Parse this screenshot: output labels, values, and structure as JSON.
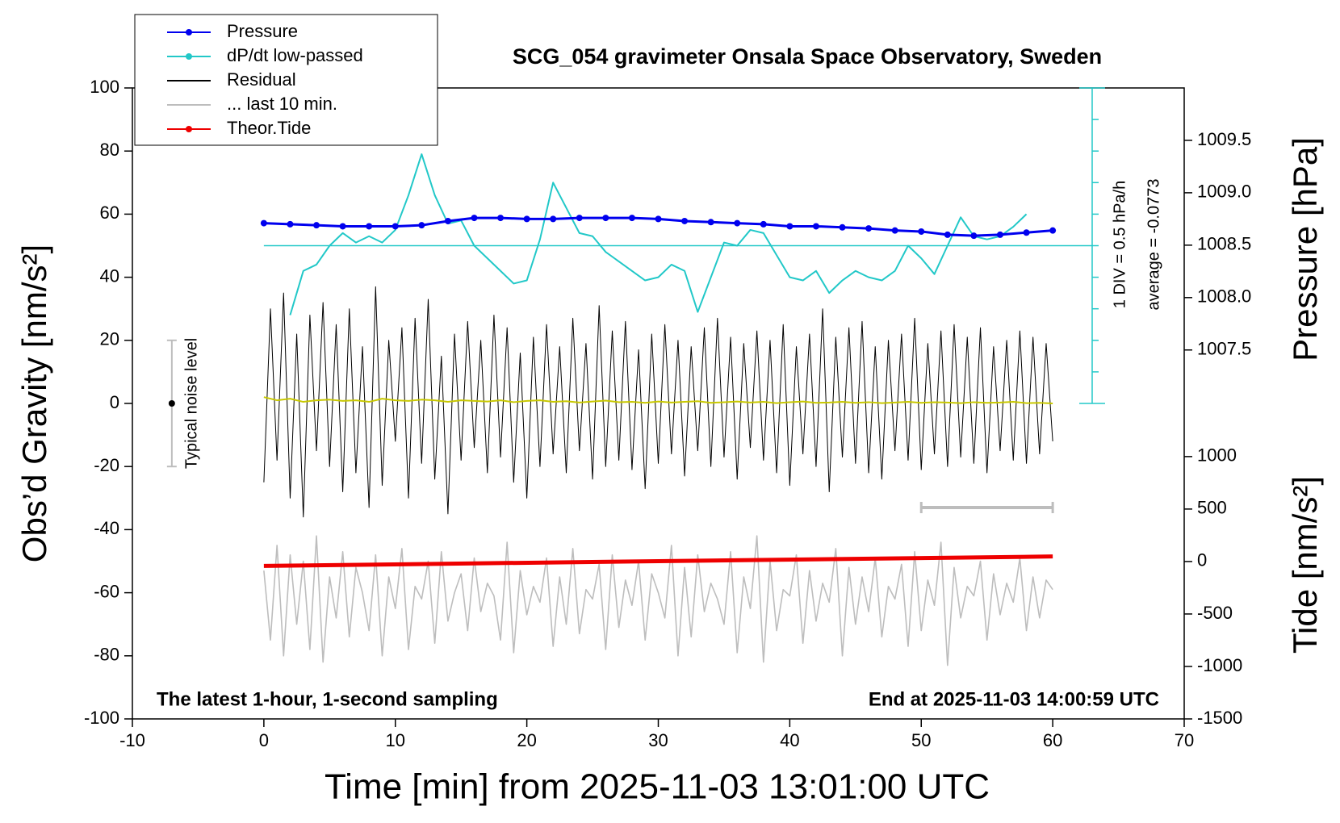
{
  "chart_data": {
    "type": "line",
    "title": "SCG_054 gravimeter Onsala Space Observatory, Sweden",
    "xlabel": "Time [min] from 2025-11-03 13:01:00 UTC",
    "ylabel": "Obs’d Gravity [nm/s²]",
    "y2label": "Pressure [hPa]",
    "y3label": "Tide [nm/s²]",
    "annotations": [
      "The latest 1-hour, 1-second sampling",
      "End at 2025-11-03 14:00:59 UTC",
      "1 DIV = 0.5 hPa/h",
      "average = -0.0773",
      "Typical noise level"
    ],
    "xlim": [
      -10,
      70
    ],
    "xticks": [
      -10,
      0,
      10,
      20,
      30,
      40,
      50,
      60,
      70
    ],
    "ylim": [
      -100,
      100
    ],
    "yticks": [
      -100,
      -80,
      -60,
      -40,
      -20,
      0,
      20,
      40,
      60,
      80,
      100
    ],
    "y2lim": [
      1003.98,
      1010.0
    ],
    "y2ticks": [
      1007.5,
      {
        "value": 1008,
        "label": "1008.0"
      },
      1008.5,
      {
        "value": 1009,
        "label": "1009.0"
      },
      1009.5
    ],
    "y3lim": [
      -1500,
      4513
    ],
    "y3ticks": [
      -1500,
      -1000,
      -500,
      0,
      500,
      1000
    ],
    "dpdt_scale": {
      "x": 63,
      "average_line": 50,
      "ticks": [
        0,
        10,
        20,
        30,
        40,
        50,
        60,
        70,
        80,
        90,
        100
      ]
    },
    "noise_bar": {
      "x": -7,
      "y": [
        -20,
        0,
        20
      ]
    },
    "last10_bar": {
      "x": [
        50,
        60
      ],
      "y": -33
    },
    "series": [
      {
        "name": "Pressure",
        "color": "#0000ee",
        "axis": "y2",
        "style": "dots",
        "marker": true,
        "x": [
          0,
          2,
          4,
          6,
          8,
          10,
          12,
          14,
          16,
          18,
          20,
          22,
          24,
          26,
          28,
          30,
          32,
          34,
          36,
          38,
          40,
          42,
          44,
          46,
          48,
          50,
          52,
          54,
          56,
          58,
          60
        ],
        "values": [
          1008.71,
          1008.7,
          1008.69,
          1008.68,
          1008.68,
          1008.68,
          1008.69,
          1008.73,
          1008.76,
          1008.76,
          1008.75,
          1008.75,
          1008.76,
          1008.76,
          1008.76,
          1008.75,
          1008.73,
          1008.72,
          1008.71,
          1008.7,
          1008.68,
          1008.68,
          1008.67,
          1008.66,
          1008.64,
          1008.63,
          1008.6,
          1008.59,
          1008.6,
          1008.62,
          1008.64
        ]
      },
      {
        "name": "dP/dt low-passed",
        "color": "#22c8c8",
        "marker": true,
        "x": [
          2,
          3,
          4,
          5,
          6,
          7,
          8,
          9,
          10,
          11,
          12,
          13,
          14,
          15,
          16,
          17,
          18,
          19,
          20,
          21,
          22,
          23,
          24,
          25,
          26,
          27,
          28,
          29,
          30,
          31,
          32,
          33,
          34,
          35,
          36,
          37,
          38,
          39,
          40,
          41,
          42,
          43,
          44,
          45,
          46,
          47,
          48,
          49,
          50,
          51,
          52,
          53,
          54,
          55,
          56,
          57,
          58
        ],
        "values": [
          28,
          42,
          44,
          50,
          54,
          51,
          53,
          51,
          55,
          66,
          79,
          66,
          57,
          58,
          50,
          46,
          42,
          38,
          39,
          52,
          70,
          62,
          54,
          53,
          48,
          45,
          42,
          39,
          40,
          44,
          42,
          29,
          40,
          51,
          50,
          55,
          54,
          47,
          40,
          39,
          42,
          35,
          39,
          42,
          40,
          39,
          42,
          50,
          46,
          41,
          50,
          59,
          53,
          52,
          53,
          56,
          60
        ]
      },
      {
        "name": "Residual",
        "color": "#000000",
        "x": [
          0,
          0.5,
          1,
          1.5,
          2,
          2.5,
          3,
          3.5,
          4,
          4.5,
          5,
          5.5,
          6,
          6.5,
          7,
          7.5,
          8,
          8.5,
          9,
          9.5,
          10,
          10.5,
          11,
          11.5,
          12,
          12.5,
          13,
          13.5,
          14,
          14.5,
          15,
          15.5,
          16,
          16.5,
          17,
          17.5,
          18,
          18.5,
          19,
          19.5,
          20,
          20.5,
          21,
          21.5,
          22,
          22.5,
          23,
          23.5,
          24,
          24.5,
          25,
          25.5,
          26,
          26.5,
          27,
          27.5,
          28,
          28.5,
          29,
          29.5,
          30,
          30.5,
          31,
          31.5,
          32,
          32.5,
          33,
          33.5,
          34,
          34.5,
          35,
          35.5,
          36,
          36.5,
          37,
          37.5,
          38,
          38.5,
          39,
          39.5,
          40,
          40.5,
          41,
          41.5,
          42,
          42.5,
          43,
          43.5,
          44,
          44.5,
          45,
          45.5,
          46,
          46.5,
          47,
          47.5,
          48,
          48.5,
          49,
          49.5,
          50,
          50.5,
          51,
          51.5,
          52,
          52.5,
          53,
          53.5,
          54,
          54.5,
          55,
          55.5,
          56,
          56.5,
          57,
          57.5,
          58,
          58.5,
          59,
          59.5,
          60
        ],
        "values": [
          -25,
          30,
          -18,
          35,
          -30,
          22,
          -36,
          28,
          -15,
          32,
          -20,
          25,
          -28,
          30,
          -22,
          18,
          -33,
          37,
          -26,
          20,
          -12,
          24,
          -30,
          27,
          -19,
          33,
          -24,
          15,
          -35,
          22,
          -18,
          26,
          -14,
          20,
          -22,
          28,
          -17,
          24,
          -25,
          16,
          -30,
          21,
          -20,
          25,
          -16,
          18,
          -22,
          27,
          -15,
          19,
          -24,
          31,
          -20,
          23,
          -18,
          26,
          -21,
          17,
          -27,
          22,
          -19,
          25,
          -16,
          20,
          -23,
          18,
          -15,
          24,
          -20,
          27,
          -17,
          21,
          -24,
          19,
          -14,
          23,
          -18,
          20,
          -22,
          25,
          -26,
          18,
          -16,
          22,
          -20,
          30,
          -28,
          21,
          -17,
          24,
          -19,
          26,
          -22,
          18,
          -24,
          20,
          -15,
          22,
          -18,
          27,
          -21,
          19,
          -16,
          23,
          -20,
          25,
          -17,
          21,
          -19,
          24,
          -22,
          18,
          -15,
          20,
          -18,
          23,
          -19,
          21,
          -16,
          19,
          -12
        ]
      },
      {
        "name": "... last 10 min.",
        "color": "#bdbdbd",
        "x": [
          0,
          0.5,
          1,
          1.5,
          2,
          2.5,
          3,
          3.5,
          4,
          4.5,
          5,
          5.5,
          6,
          6.5,
          7,
          7.5,
          8,
          8.5,
          9,
          9.5,
          10,
          10.5,
          11,
          11.5,
          12,
          12.5,
          13,
          13.5,
          14,
          14.5,
          15,
          15.5,
          16,
          16.5,
          17,
          17.5,
          18,
          18.5,
          19,
          19.5,
          20,
          20.5,
          21,
          21.5,
          22,
          22.5,
          23,
          23.5,
          24,
          24.5,
          25,
          25.5,
          26,
          26.5,
          27,
          27.5,
          28,
          28.5,
          29,
          29.5,
          30,
          30.5,
          31,
          31.5,
          32,
          32.5,
          33,
          33.5,
          34,
          34.5,
          35,
          35.5,
          36,
          36.5,
          37,
          37.5,
          38,
          38.5,
          39,
          39.5,
          40,
          40.5,
          41,
          41.5,
          42,
          42.5,
          43,
          43.5,
          44,
          44.5,
          45,
          45.5,
          46,
          46.5,
          47,
          47.5,
          48,
          48.5,
          49,
          49.5,
          50,
          50.5,
          51,
          51.5,
          52,
          52.5,
          53,
          53.5,
          54,
          54.5,
          55,
          55.5,
          56,
          56.5,
          57,
          57.5,
          58,
          58.5,
          59,
          59.5,
          60
        ],
        "values": [
          -53,
          -75,
          -45,
          -80,
          -48,
          -70,
          -50,
          -78,
          -42,
          -82,
          -55,
          -68,
          -47,
          -74,
          -52,
          -60,
          -72,
          -48,
          -80,
          -55,
          -65,
          -46,
          -78,
          -58,
          -62,
          -50,
          -76,
          -47,
          -69,
          -60,
          -54,
          -72,
          -49,
          -66,
          -57,
          -61,
          -75,
          -44,
          -79,
          -53,
          -67,
          -58,
          -63,
          -49,
          -77,
          -55,
          -70,
          -46,
          -73,
          -59,
          -62,
          -51,
          -78,
          -48,
          -71,
          -56,
          -64,
          -50,
          -75,
          -54,
          -60,
          -68,
          -45,
          -80,
          -52,
          -74,
          -48,
          -66,
          -57,
          -62,
          -70,
          -47,
          -79,
          -55,
          -65,
          -42,
          -82,
          -50,
          -72,
          -59,
          -61,
          -48,
          -76,
          -53,
          -69,
          -57,
          -63,
          -46,
          -80,
          -52,
          -70,
          -55,
          -66,
          -49,
          -74,
          -58,
          -62,
          -51,
          -77,
          -47,
          -72,
          -56,
          -64,
          -44,
          -83,
          -52,
          -68,
          -58,
          -61,
          -50,
          -75,
          -54,
          -67,
          -57,
          -63,
          -49,
          -72,
          -55,
          -68,
          -56,
          -59
        ]
      },
      {
        "name": "Theor.Tide",
        "color": "#ee0000",
        "axis": "y3",
        "marker": true,
        "x": [
          0,
          60
        ],
        "values": [
          -42,
          48
        ]
      },
      {
        "color": "#c8c800",
        "x": [
          0,
          1,
          2,
          3,
          4,
          5,
          6,
          7,
          8,
          9,
          10,
          11,
          12,
          13,
          14,
          15,
          16,
          17,
          18,
          19,
          20,
          21,
          22,
          23,
          24,
          25,
          26,
          27,
          28,
          29,
          30,
          31,
          32,
          33,
          34,
          35,
          36,
          37,
          38,
          39,
          40,
          41,
          42,
          43,
          44,
          45,
          46,
          47,
          48,
          49,
          50,
          51,
          52,
          53,
          54,
          55,
          56,
          57,
          58,
          59,
          60
        ],
        "values": [
          2,
          1,
          1.5,
          0.5,
          1,
          1.2,
          0.8,
          1,
          0.5,
          1.5,
          1,
          0.8,
          1.2,
          1,
          0.5,
          1,
          0.8,
          0.6,
          1,
          0.4,
          0.8,
          1,
          0.5,
          0.7,
          0.3,
          0.6,
          0.9,
          0.4,
          0.5,
          0.2,
          0.6,
          0.3,
          0.5,
          0.7,
          0.2,
          0.4,
          0.6,
          0.3,
          0.5,
          0.1,
          0.4,
          0.6,
          0.2,
          0.3,
          0.5,
          0.2,
          0.4,
          0.1,
          0.3,
          0.5,
          0.2,
          0.4,
          0.3,
          0.1,
          0.4,
          0.2,
          0.3,
          0.5,
          0.1,
          0.2,
          0
        ]
      }
    ]
  }
}
